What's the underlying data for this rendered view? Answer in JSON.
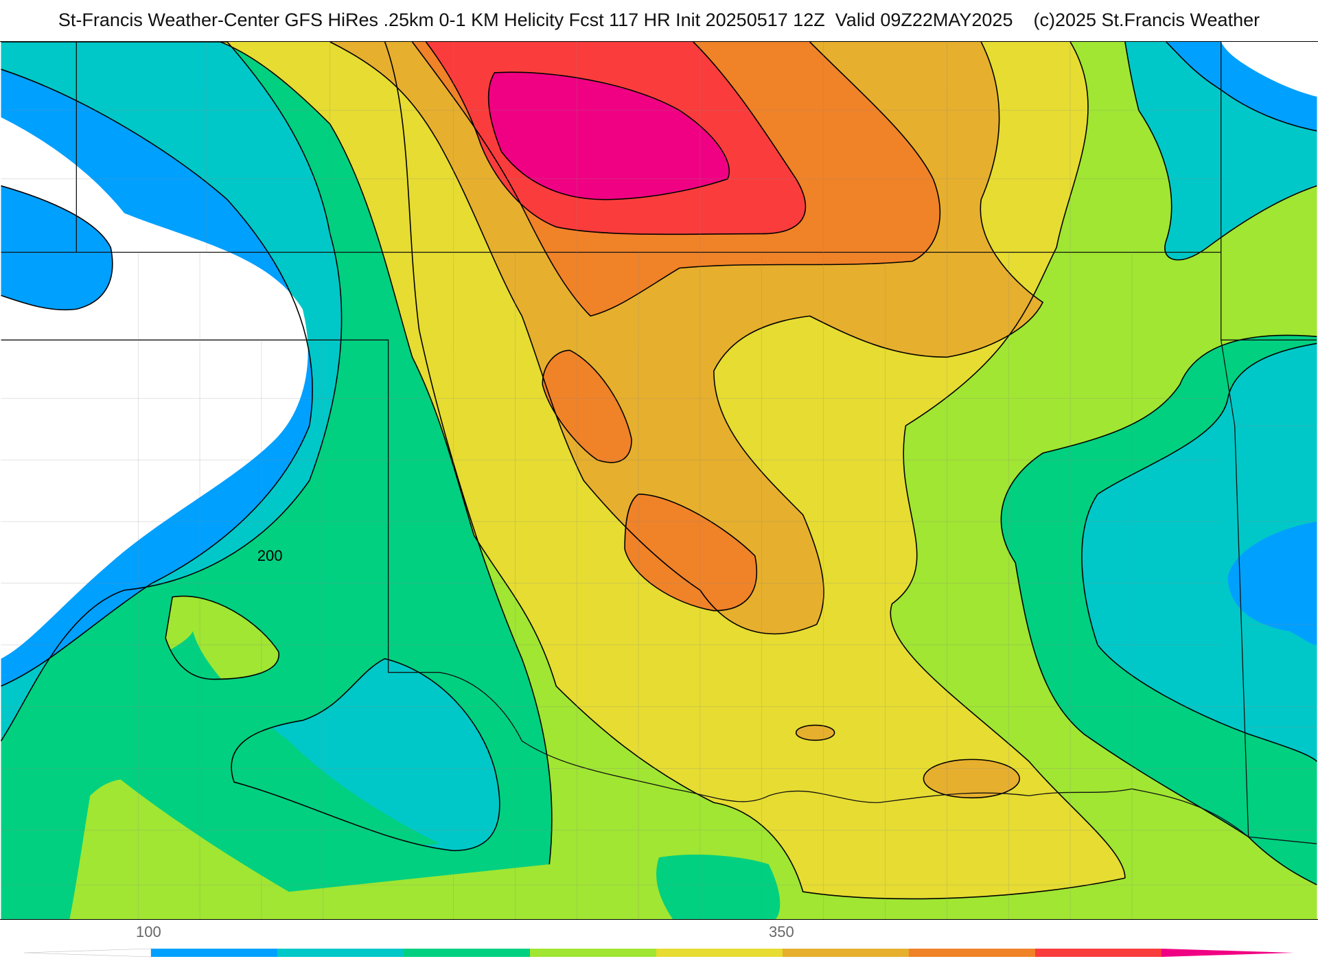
{
  "header": {
    "title": "St-Francis Weather-Center GFS HiRes .25km 0-1 KM Helicity Fcst 117 HR Init 20250517 12Z  Valid 09Z22MAY2025    (c)2025 St.Francis Weather"
  },
  "map": {
    "contour_label": "200"
  },
  "colorbar": {
    "labels": [
      "100",
      "350"
    ],
    "colors": [
      "#ffffff",
      "#00a0ff",
      "#00c8c8",
      "#00d080",
      "#a0e632",
      "#e6dc32",
      "#e6af2d",
      "#f08228",
      "#fa3c3c",
      "#f00082"
    ]
  },
  "palette": {
    "white": "#ffffff",
    "blue": "#00a0ff",
    "cyan": "#00c8c8",
    "green": "#00d080",
    "lime": "#a0e632",
    "yellow": "#e6dc32",
    "gold": "#e6af2d",
    "orange": "#f08228",
    "red": "#fa3c3c",
    "magenta": "#f00082"
  }
}
